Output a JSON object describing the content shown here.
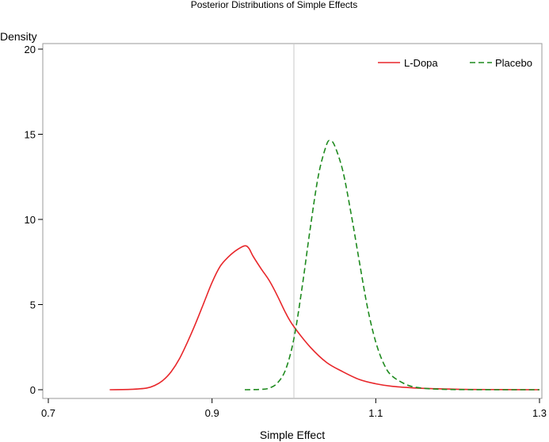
{
  "chart_data": {
    "type": "line",
    "title": "Posterior Distributions of Simple Effects",
    "xlabel": "Simple Effect",
    "ylabel": "Density",
    "xlim": [
      0.7,
      1.3
    ],
    "ylim": [
      0,
      20
    ],
    "xticks": [
      "0.7",
      "0.9",
      "1.1",
      "1.3"
    ],
    "yticks": [
      "0",
      "5",
      "10",
      "15",
      "20"
    ],
    "reference_line_x": 1.0,
    "grid": false,
    "legend_position": "top-right",
    "series": [
      {
        "name": "L-Dopa",
        "color": "#e8262a",
        "dash": "solid",
        "x": [
          0.775,
          0.8,
          0.82,
          0.83,
          0.84,
          0.85,
          0.86,
          0.87,
          0.88,
          0.89,
          0.9,
          0.91,
          0.92,
          0.93,
          0.94,
          0.945,
          0.95,
          0.96,
          0.97,
          0.98,
          0.99,
          1.0,
          1.02,
          1.04,
          1.06,
          1.08,
          1.1,
          1.12,
          1.15,
          1.2,
          1.25,
          1.3
        ],
        "y": [
          0.0,
          0.02,
          0.1,
          0.25,
          0.55,
          1.05,
          1.8,
          2.8,
          3.9,
          5.1,
          6.3,
          7.25,
          7.8,
          8.2,
          8.45,
          8.3,
          7.85,
          7.1,
          6.4,
          5.5,
          4.5,
          3.7,
          2.5,
          1.6,
          1.05,
          0.6,
          0.35,
          0.2,
          0.1,
          0.03,
          0.01,
          0.0
        ]
      },
      {
        "name": "Placebo",
        "color": "#1e8a1e",
        "dash": "dashed",
        "x": [
          0.94,
          0.96,
          0.97,
          0.98,
          0.99,
          1.0,
          1.01,
          1.02,
          1.03,
          1.04,
          1.045,
          1.05,
          1.06,
          1.07,
          1.08,
          1.09,
          1.1,
          1.11,
          1.12,
          1.14,
          1.16,
          1.18,
          1.2,
          1.25,
          1.3
        ],
        "y": [
          0.0,
          0.02,
          0.1,
          0.4,
          1.2,
          3.0,
          6.0,
          9.5,
          12.6,
          14.4,
          14.6,
          14.3,
          12.8,
          10.3,
          7.5,
          4.8,
          2.8,
          1.5,
          0.8,
          0.25,
          0.08,
          0.03,
          0.01,
          0.0,
          0.0
        ]
      }
    ]
  }
}
